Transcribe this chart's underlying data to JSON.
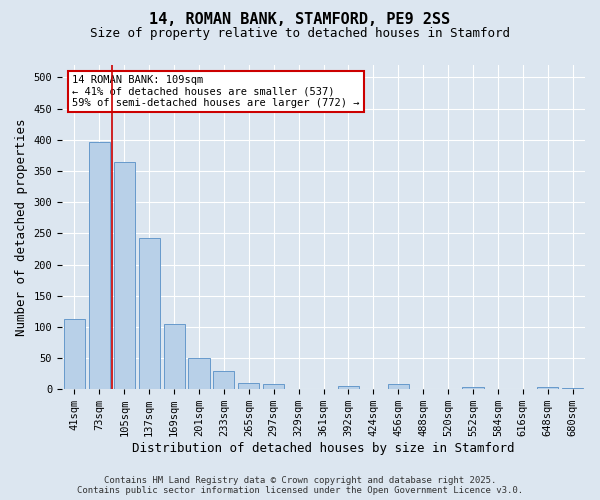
{
  "title": "14, ROMAN BANK, STAMFORD, PE9 2SS",
  "subtitle": "Size of property relative to detached houses in Stamford",
  "xlabel": "Distribution of detached houses by size in Stamford",
  "ylabel": "Number of detached properties",
  "footer_line1": "Contains HM Land Registry data © Crown copyright and database right 2025.",
  "footer_line2": "Contains public sector information licensed under the Open Government Licence v3.0.",
  "categories": [
    "41sqm",
    "73sqm",
    "105sqm",
    "137sqm",
    "169sqm",
    "201sqm",
    "233sqm",
    "265sqm",
    "297sqm",
    "329sqm",
    "361sqm",
    "392sqm",
    "424sqm",
    "456sqm",
    "488sqm",
    "520sqm",
    "552sqm",
    "584sqm",
    "616sqm",
    "648sqm",
    "680sqm"
  ],
  "values": [
    112,
    397,
    365,
    243,
    105,
    50,
    29,
    10,
    8,
    1,
    0,
    5,
    0,
    8,
    0,
    0,
    3,
    0,
    0,
    3,
    2
  ],
  "bar_color": "#b8d0e8",
  "bar_edge_color": "#6699cc",
  "annotation_text": "14 ROMAN BANK: 109sqm\n← 41% of detached houses are smaller (537)\n59% of semi-detached houses are larger (772) →",
  "annotation_box_facecolor": "#ffffff",
  "annotation_box_edgecolor": "#cc0000",
  "vline_color": "#cc0000",
  "vline_x": 1.5,
  "ylim": [
    0,
    520
  ],
  "yticks": [
    0,
    50,
    100,
    150,
    200,
    250,
    300,
    350,
    400,
    450,
    500
  ],
  "background_color": "#dce6f0",
  "plot_background": "#dce6f0",
  "grid_color": "#ffffff",
  "title_fontsize": 11,
  "subtitle_fontsize": 9,
  "axis_label_fontsize": 9,
  "tick_fontsize": 7.5,
  "footer_fontsize": 6.5
}
